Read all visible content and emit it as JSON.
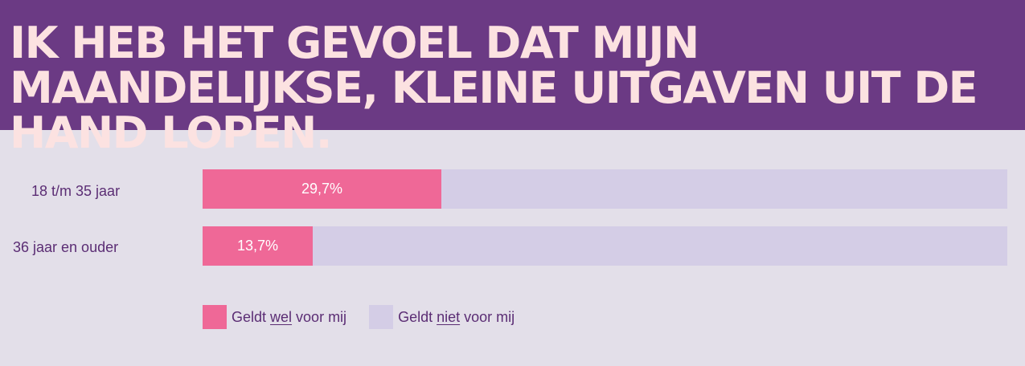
{
  "header": {
    "title": "IK HEB HET GEVOEL DAT MIJN MAANDELIJKSE, KLEINE UITGAVEN UIT DE HAND LOPEN."
  },
  "colors": {
    "header_bg": "#6b3a84",
    "title_text": "#fce2e1",
    "background": "#e3dfe9",
    "wel": "#ef6897",
    "niet": "#d4cde6",
    "label_text": "#5b2d74"
  },
  "chart_data": {
    "type": "bar",
    "orientation": "horizontal",
    "stacked": true,
    "title": "IK HEB HET GEVOEL DAT MIJN MAANDELIJKSE, KLEINE UITGAVEN UIT DE HAND LOPEN.",
    "categories": [
      "18 t/m 35 jaar",
      "36 jaar en ouder"
    ],
    "series": [
      {
        "name": "Geldt wel voor mij",
        "values": [
          29.7,
          13.7
        ],
        "value_labels": [
          "29,7%",
          "13,7%"
        ],
        "color": "#ef6897"
      },
      {
        "name": "Geldt niet voor mij",
        "values": [
          70.3,
          86.3
        ],
        "color": "#d4cde6"
      }
    ],
    "xlim": [
      0,
      100
    ],
    "grid": false,
    "legend_position": "bottom"
  },
  "legend": [
    {
      "before": "Geldt ",
      "emph": "wel",
      "after": " voor mij"
    },
    {
      "before": "Geldt ",
      "emph": "niet",
      "after": " voor mij"
    }
  ]
}
